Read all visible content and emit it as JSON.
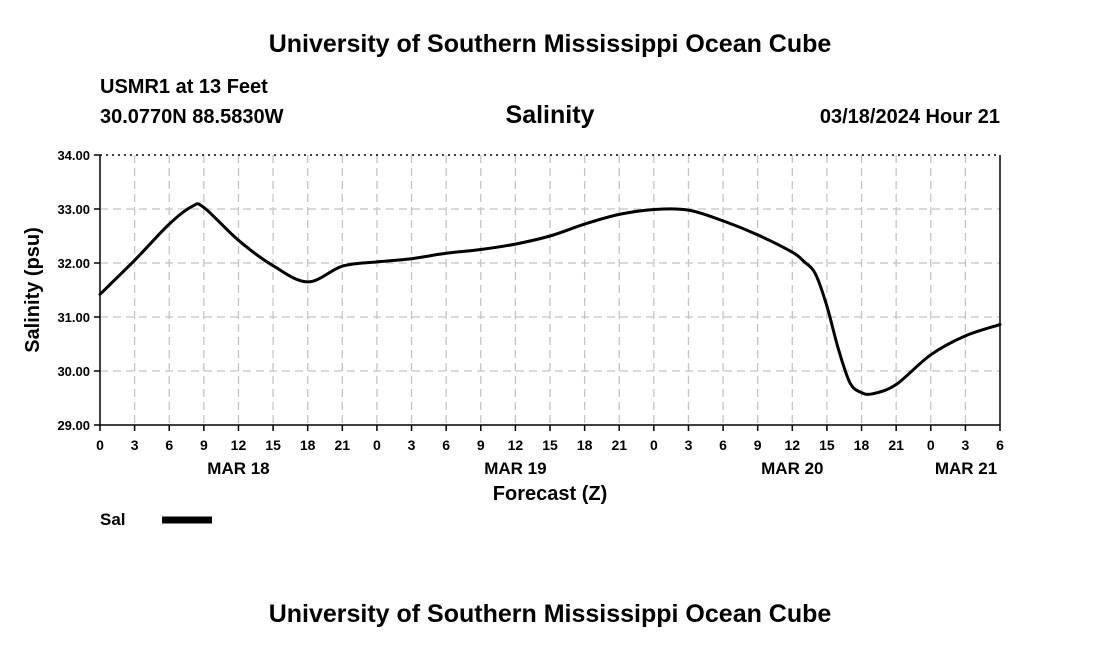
{
  "header": {
    "title": "University of Southern Mississippi Ocean Cube",
    "station": "USMR1 at 13 Feet",
    "coords": "30.0770N  88.5830W",
    "variable": "Salinity",
    "datetime": "03/18/2024 Hour 21"
  },
  "footer": {
    "title": "University of Southern Mississippi Ocean Cube"
  },
  "chart_data": {
    "type": "line",
    "title": "Salinity",
    "xlabel": "Forecast (Z)",
    "ylabel": "Salinity (psu)",
    "ylim": [
      29,
      34
    ],
    "yticks": [
      "29.00",
      "30.00",
      "31.00",
      "32.00",
      "33.00",
      "34.00"
    ],
    "x_range_hours": [
      0,
      78
    ],
    "x_tick_labels": [
      "0",
      "3",
      "6",
      "9",
      "12",
      "15",
      "18",
      "21",
      "0",
      "3",
      "6",
      "9",
      "12",
      "15",
      "18",
      "21",
      "0",
      "3",
      "6",
      "9",
      "12",
      "15",
      "18",
      "21",
      "0",
      "3",
      "6"
    ],
    "day_labels": [
      {
        "label": "MAR 18",
        "hour": 12
      },
      {
        "label": "MAR 19",
        "hour": 36
      },
      {
        "label": "MAR 20",
        "hour": 60
      },
      {
        "label": "MAR 21",
        "hour": 78
      }
    ],
    "grid": true,
    "legend": {
      "label": "Sal",
      "placement": "bottom-left"
    },
    "series": [
      {
        "name": "Sal",
        "color": "#000000",
        "x_hours": [
          0,
          3,
          6,
          8,
          9,
          12,
          15,
          18,
          21,
          24,
          27,
          30,
          33,
          36,
          39,
          42,
          45,
          48,
          51,
          54,
          57,
          60,
          61,
          62,
          63,
          64,
          65,
          66,
          67,
          69,
          72,
          75,
          78
        ],
        "values": [
          31.42,
          32.05,
          32.72,
          33.05,
          33.03,
          32.42,
          31.95,
          31.65,
          31.94,
          32.02,
          32.08,
          32.18,
          32.25,
          32.35,
          32.5,
          32.72,
          32.9,
          32.99,
          32.98,
          32.78,
          32.52,
          32.2,
          32.03,
          31.8,
          31.2,
          30.4,
          29.78,
          29.6,
          29.58,
          29.75,
          30.3,
          30.65,
          30.86
        ]
      }
    ]
  }
}
